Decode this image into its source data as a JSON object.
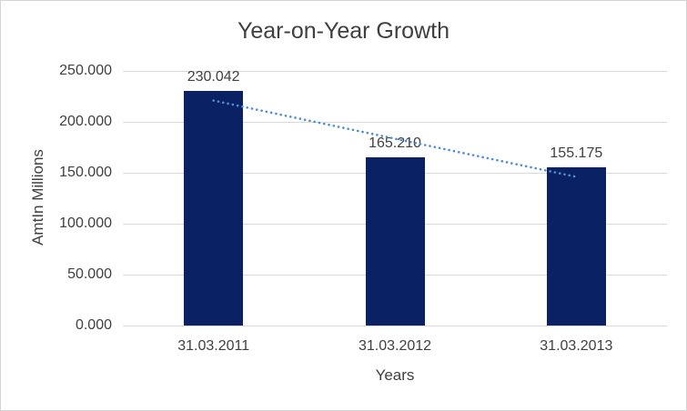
{
  "chart_data": {
    "type": "bar",
    "title": "Year-on-Year Growth",
    "xlabel": "Years",
    "ylabel": "AmtIn Millions",
    "categories": [
      "31.03.2011",
      "31.03.2012",
      "31.03.2013"
    ],
    "values": [
      230.042,
      165.21,
      155.175
    ],
    "data_labels": [
      "230.042",
      "165.210",
      "155.175"
    ],
    "y_ticks": [
      "250.000",
      "200.000",
      "150.000",
      "100.000",
      "50.000",
      "0.000"
    ],
    "ylim": [
      0,
      250
    ],
    "grid": true,
    "legend": "none",
    "trendline": {
      "style": "dotted",
      "shape": "linear",
      "start_value": 220.9,
      "end_value": 146.0
    },
    "colors": {
      "bar": "#0a2263",
      "trendline": "#4e8ed2",
      "gridline": "#d9d9d9",
      "text": "#404040",
      "border": "#d4d4d4",
      "background": "#ffffff"
    }
  }
}
